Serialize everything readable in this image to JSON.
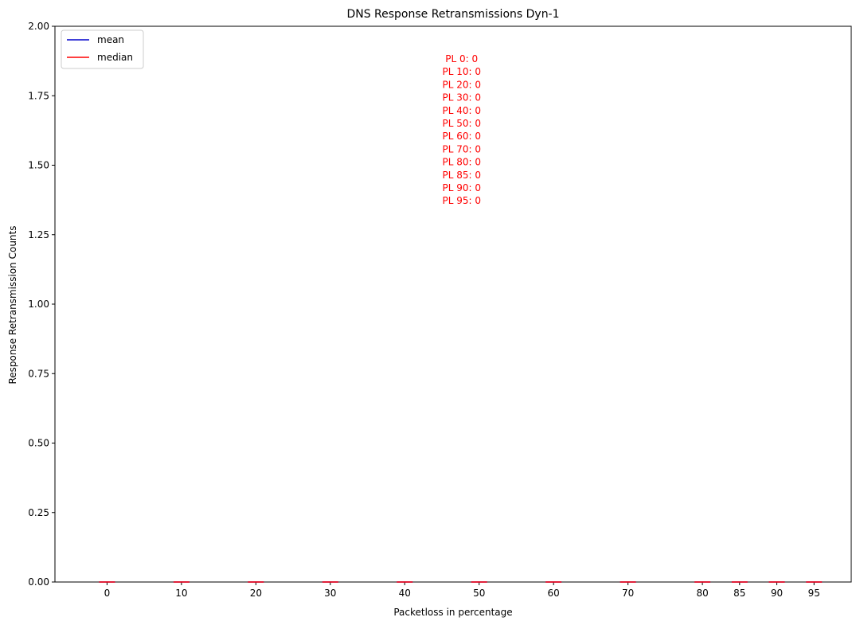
{
  "chart_data": {
    "type": "box",
    "title": "DNS Response Retransmissions Dyn-1",
    "xlabel": "Packetloss in percentage",
    "ylabel": "Response Retransmission Counts",
    "x": [
      0,
      10,
      20,
      30,
      40,
      50,
      60,
      70,
      80,
      85,
      90,
      95
    ],
    "x_tick_labels": [
      "0",
      "10",
      "20",
      "30",
      "40",
      "50",
      "60",
      "70",
      "80",
      "85",
      "90",
      "95"
    ],
    "xlim": [
      -7,
      100
    ],
    "ylim": [
      0,
      2
    ],
    "y_ticks": [
      0,
      0.25,
      0.5,
      0.75,
      1.0,
      1.25,
      1.5,
      1.75,
      2.0
    ],
    "y_tick_labels": [
      "0.00",
      "0.25",
      "0.50",
      "0.75",
      "1.00",
      "1.25",
      "1.50",
      "1.75",
      "2.00"
    ],
    "series": [
      {
        "name": "mean",
        "color": "#0000cc",
        "values": [
          0,
          0,
          0,
          0,
          0,
          0,
          0,
          0,
          0,
          0,
          0,
          0
        ]
      },
      {
        "name": "median",
        "color": "#ff0000",
        "values": [
          0,
          0,
          0,
          0,
          0,
          0,
          0,
          0,
          0,
          0,
          0,
          0
        ]
      }
    ],
    "legend": {
      "placement": "top-left",
      "entries": [
        "mean",
        "median"
      ]
    },
    "annotation": {
      "color": "#ff0000",
      "lines": [
        "PL 0: 0",
        "PL 10: 0",
        "PL 20: 0",
        "PL 30: 0",
        "PL 40: 0",
        "PL 50: 0",
        "PL 60: 0",
        "PL 70: 0",
        "PL 80: 0",
        "PL 85: 0",
        "PL 90: 0",
        "PL 95: 0"
      ]
    },
    "grid": false
  }
}
